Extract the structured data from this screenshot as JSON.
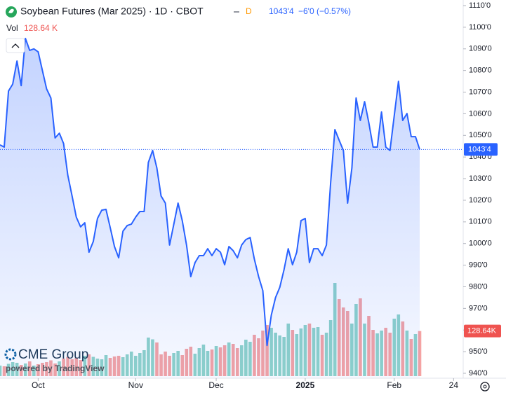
{
  "chart_data": {
    "type": "line",
    "title": "Soybean Futures (Mar 2025) · 1D · CBOT",
    "interval_badge": "D",
    "change_label": "−6'0 (−0.57%)",
    "volume_title": "Vol",
    "volume_label": "128.64 K",
    "volume_axis_label": "128.64K",
    "logo": "CME Group",
    "powered_by": "powered by TradingView",
    "price": {
      "value": 1043.5,
      "label": "1043'4"
    },
    "series": [
      {
        "name": "Price",
        "color": "#2962ff",
        "values": [
          1045.6,
          1044.6,
          1070.5,
          1073.7,
          1084.4,
          1073,
          1094.8,
          1089.3,
          1090,
          1088.6,
          1080,
          1071.5,
          1067.3,
          1048.8,
          1051,
          1046.2,
          1031.6,
          1022,
          1012.2,
          1007.7,
          1009.6,
          996,
          1000.9,
          1011.6,
          1015.4,
          1015.8,
          1007.3,
          998.6,
          993.4,
          1005.7,
          1008.3,
          1009,
          1012.2,
          1014.8,
          1014.8,
          1037.5,
          1043,
          1034.9,
          1022,
          1018.7,
          999.3,
          1009,
          1018.7,
          1010.6,
          999.3,
          984.7,
          991.2,
          994.4,
          994.4,
          997.6,
          994.4,
          997.6,
          996,
          990.2,
          998.6,
          996.7,
          993.4,
          999.3,
          1001.8,
          1002.8,
          992.8,
          984.7,
          978.2,
          952.9,
          966.9,
          975,
          979.8,
          987.9,
          997.6,
          990.2,
          996,
          1010.6,
          1011.6,
          991.2,
          997.6,
          997.6,
          994.4,
          999.3,
          1028.4,
          1052.7,
          1047.8,
          1043,
          1018.7,
          1034.9,
          1067.3,
          1056.9,
          1065.6,
          1055.9,
          1044.6,
          1044.6,
          1060.8,
          1044.6,
          1043,
          1059.2,
          1075,
          1056.9,
          1060.1,
          1049.4,
          1049.4,
          1043.5
        ]
      },
      {
        "name": "Vol",
        "up_color": "#8fd3c9",
        "down_color": "#f5a3a3",
        "values": [
          30,
          28,
          35,
          40,
          38,
          32,
          36,
          42,
          30,
          34,
          38,
          40,
          45,
          36,
          42,
          50,
          55,
          48,
          52,
          46,
          58,
          62,
          55,
          50,
          48,
          60,
          52,
          56,
          58,
          54,
          62,
          70,
          58,
          66,
          74,
          110,
          105,
          96,
          62,
          70,
          58,
          66,
          72,
          60,
          78,
          84,
          64,
          80,
          90,
          72,
          76,
          86,
          82,
          88,
          96,
          92,
          80,
          88,
          104,
          98,
          118,
          108,
          130,
          146,
          138,
          124,
          116,
          112,
          150,
          132,
          120,
          136,
          146,
          150,
          138,
          140,
          118,
          124,
          160,
          266,
          220,
          196,
          186,
          150,
          206,
          222,
          150,
          172,
          132,
          122,
          130,
          138,
          124,
          164,
          176,
          156,
          130,
          106,
          120,
          128.64
        ]
      }
    ],
    "xticks": [
      {
        "value": 9,
        "label": "Oct"
      },
      {
        "value": 32,
        "label": "Nov"
      },
      {
        "value": 51,
        "label": "Dec"
      },
      {
        "value": 72,
        "label": "2025"
      },
      {
        "value": 93,
        "label": "Feb"
      },
      {
        "value": 107,
        "label": "24"
      }
    ],
    "ylim": [
      940,
      1110
    ],
    "yticks": [
      {
        "value": 1110,
        "label": "1110'0"
      },
      {
        "value": 1100,
        "label": "1100'0"
      },
      {
        "value": 1090,
        "label": "1090'0"
      },
      {
        "value": 1080,
        "label": "1080'0"
      },
      {
        "value": 1070,
        "label": "1070'0"
      },
      {
        "value": 1060,
        "label": "1060'0"
      },
      {
        "value": 1050,
        "label": "1050'0"
      },
      {
        "value": 1040,
        "label": "1040'0"
      },
      {
        "value": 1030,
        "label": "1030'0"
      },
      {
        "value": 1020,
        "label": "1020'0"
      },
      {
        "value": 1010,
        "label": "1010'0"
      },
      {
        "value": 1000,
        "label": "1000'0"
      },
      {
        "value": 990,
        "label": "990'0"
      },
      {
        "value": 980,
        "label": "980'0"
      },
      {
        "value": 970,
        "label": "970'0"
      },
      {
        "value": 960,
        "label": "960'0"
      },
      {
        "value": 950,
        "label": "950'0"
      },
      {
        "value": 940,
        "label": "940'0"
      }
    ]
  }
}
